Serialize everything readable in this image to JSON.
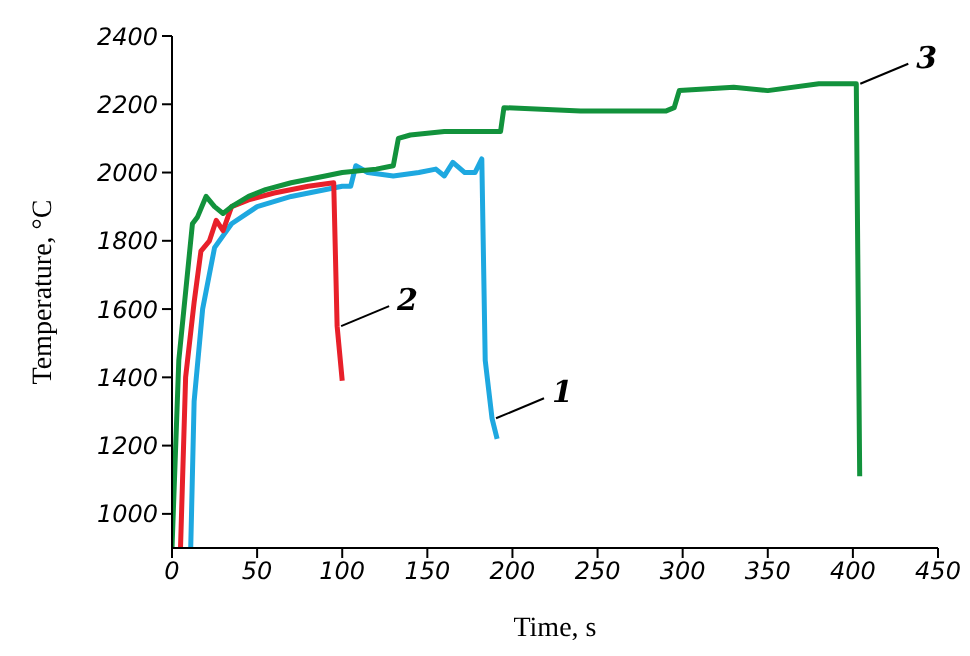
{
  "chart_data": {
    "type": "line",
    "xlabel": "Time, s",
    "ylabel": "Temperature, °C",
    "xlim": [
      0,
      450
    ],
    "xticks": [
      0,
      50,
      100,
      150,
      200,
      250,
      300,
      350,
      400,
      450
    ],
    "ylim": [
      900,
      2400
    ],
    "yticks": [
      1000,
      1200,
      1400,
      1600,
      1800,
      2000,
      2200,
      2400
    ],
    "grid": false,
    "legend": false,
    "marker": "none",
    "line_style": "solid",
    "series": [
      {
        "name": "1",
        "color": "#1ea8e0",
        "x": [
          11,
          13,
          18,
          25,
          35,
          50,
          70,
          100,
          105,
          108,
          115,
          130,
          145,
          155,
          160,
          165,
          172,
          178,
          182,
          184,
          188,
          191
        ],
        "values": [
          900,
          1330,
          1600,
          1780,
          1850,
          1900,
          1930,
          1960,
          1960,
          2020,
          2000,
          1990,
          2000,
          2010,
          1990,
          2030,
          2000,
          2000,
          2040,
          1450,
          1280,
          1220
        ]
      },
      {
        "name": "2",
        "color": "#e8202a",
        "x": [
          5,
          8,
          13,
          17,
          22,
          26,
          30,
          35,
          45,
          60,
          80,
          95,
          97,
          100
        ],
        "values": [
          900,
          1400,
          1620,
          1770,
          1800,
          1860,
          1830,
          1900,
          1920,
          1940,
          1960,
          1970,
          1550,
          1390
        ]
      },
      {
        "name": "3",
        "color": "#12923c",
        "x": [
          0,
          4,
          12,
          15,
          20,
          25,
          30,
          35,
          45,
          55,
          70,
          90,
          100,
          120,
          130,
          133,
          140,
          160,
          193,
          195,
          240,
          290,
          295,
          298,
          330,
          350,
          380,
          402,
          404
        ],
        "values": [
          900,
          1450,
          1850,
          1870,
          1930,
          1900,
          1880,
          1900,
          1930,
          1950,
          1970,
          1990,
          2000,
          2010,
          2020,
          2100,
          2110,
          2120,
          2120,
          2190,
          2180,
          2180,
          2190,
          2240,
          2250,
          2240,
          2260,
          2260,
          1110
        ]
      }
    ]
  }
}
